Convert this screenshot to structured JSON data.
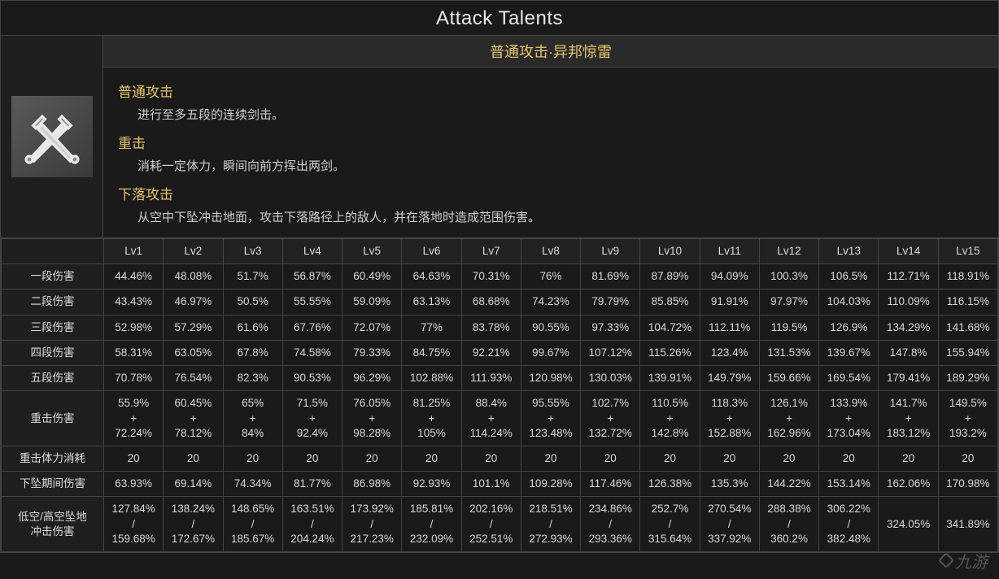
{
  "title": "Attack Talents",
  "talent": {
    "name": "普通攻击·异邦惊雷",
    "icon_name": "crossed-swords-icon",
    "sections": [
      {
        "heading": "普通攻击",
        "text": "进行至多五段的连续剑击。"
      },
      {
        "heading": "重击",
        "text": "消耗一定体力，瞬间向前方挥出两剑。"
      },
      {
        "heading": "下落攻击",
        "text": "从空中下坠冲击地面，攻击下落路径上的敌人，并在落地时造成范围伤害。"
      }
    ]
  },
  "table": {
    "levels": [
      "Lv1",
      "Lv2",
      "Lv3",
      "Lv4",
      "Lv5",
      "Lv6",
      "Lv7",
      "Lv8",
      "Lv9",
      "Lv10",
      "Lv11",
      "Lv12",
      "Lv13",
      "Lv14",
      "Lv15"
    ],
    "rows": [
      {
        "label": "一段伤害",
        "cells": [
          "44.46%",
          "48.08%",
          "51.7%",
          "56.87%",
          "60.49%",
          "64.63%",
          "70.31%",
          "76%",
          "81.69%",
          "87.89%",
          "94.09%",
          "100.3%",
          "106.5%",
          "112.71%",
          "118.91%"
        ]
      },
      {
        "label": "二段伤害",
        "cells": [
          "43.43%",
          "46.97%",
          "50.5%",
          "55.55%",
          "59.09%",
          "63.13%",
          "68.68%",
          "74.23%",
          "79.79%",
          "85.85%",
          "91.91%",
          "97.97%",
          "104.03%",
          "110.09%",
          "116.15%"
        ]
      },
      {
        "label": "三段伤害",
        "cells": [
          "52.98%",
          "57.29%",
          "61.6%",
          "67.76%",
          "72.07%",
          "77%",
          "83.78%",
          "90.55%",
          "97.33%",
          "104.72%",
          "112.11%",
          "119.5%",
          "126.9%",
          "134.29%",
          "141.68%"
        ]
      },
      {
        "label": "四段伤害",
        "cells": [
          "58.31%",
          "63.05%",
          "67.8%",
          "74.58%",
          "79.33%",
          "84.75%",
          "92.21%",
          "99.67%",
          "107.12%",
          "115.26%",
          "123.4%",
          "131.53%",
          "139.67%",
          "147.8%",
          "155.94%"
        ]
      },
      {
        "label": "五段伤害",
        "cells": [
          "70.78%",
          "76.54%",
          "82.3%",
          "90.53%",
          "96.29%",
          "102.88%",
          "111.93%",
          "120.98%",
          "130.03%",
          "139.91%",
          "149.79%",
          "159.66%",
          "169.54%",
          "179.41%",
          "189.29%"
        ]
      },
      {
        "label": "重击伤害",
        "cells": [
          "55.9%\n+\n72.24%",
          "60.45%\n+\n78.12%",
          "65%\n+\n84%",
          "71.5%\n+\n92.4%",
          "76.05%\n+\n98.28%",
          "81.25%\n+\n105%",
          "88.4%\n+\n114.24%",
          "95.55%\n+\n123.48%",
          "102.7%\n+\n132.72%",
          "110.5%\n+\n142.8%",
          "118.3%\n+\n152.88%",
          "126.1%\n+\n162.96%",
          "133.9%\n+\n173.04%",
          "141.7%\n+\n183.12%",
          "149.5%\n+\n193.2%"
        ]
      },
      {
        "label": "重击体力消耗",
        "cells": [
          "20",
          "20",
          "20",
          "20",
          "20",
          "20",
          "20",
          "20",
          "20",
          "20",
          "20",
          "20",
          "20",
          "20",
          "20"
        ]
      },
      {
        "label": "下坠期间伤害",
        "cells": [
          "63.93%",
          "69.14%",
          "74.34%",
          "81.77%",
          "86.98%",
          "92.93%",
          "101.1%",
          "109.28%",
          "117.46%",
          "126.38%",
          "135.3%",
          "144.22%",
          "153.14%",
          "162.06%",
          "170.98%"
        ]
      },
      {
        "label": "低空/高空坠地\n冲击伤害",
        "cells": [
          "127.84%\n/\n159.68%",
          "138.24%\n/\n172.67%",
          "148.65%\n/\n185.67%",
          "163.51%\n/\n204.24%",
          "173.92%\n/\n217.23%",
          "185.81%\n/\n232.09%",
          "202.16%\n/\n252.51%",
          "218.51%\n/\n272.93%",
          "234.86%\n/\n293.36%",
          "252.7%\n/\n315.64%",
          "270.54%\n/\n337.92%",
          "288.38%\n/\n360.2%",
          "306.22%\n/\n382.48%",
          "324.05%",
          "341.89%"
        ]
      }
    ]
  },
  "watermark": "九游",
  "colors": {
    "background": "#1a1a1a",
    "border": "#444444",
    "text": "#d0d0d0",
    "accent": "#e5c568",
    "header_bg": "#222222",
    "panel_bg": "#1f1f1f"
  }
}
